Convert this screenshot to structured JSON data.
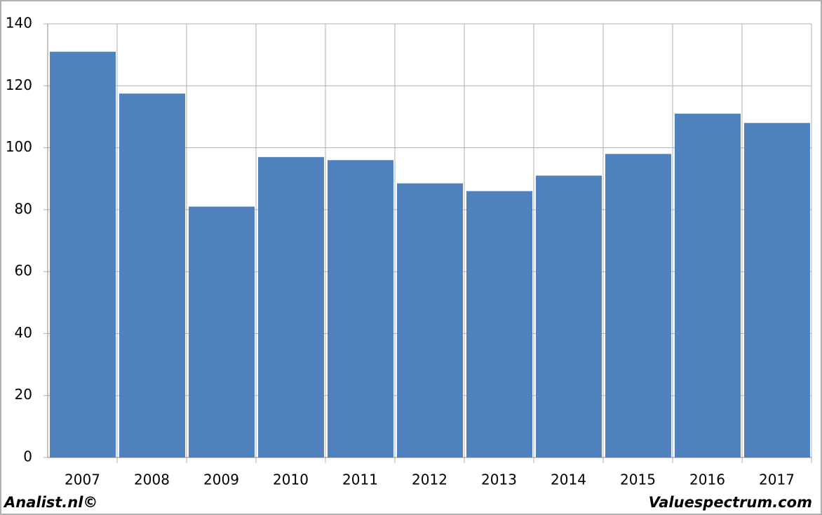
{
  "chart_data": {
    "type": "bar",
    "categories": [
      "2007",
      "2008",
      "2009",
      "2010",
      "2011",
      "2012",
      "2013",
      "2014",
      "2015",
      "2016",
      "2017"
    ],
    "values": [
      131,
      117.5,
      81,
      97,
      96,
      88.5,
      86,
      91,
      98,
      111,
      108
    ],
    "color": "#4f81bd",
    "ylim": [
      0,
      140
    ],
    "yticks": [
      0,
      20,
      40,
      60,
      80,
      100,
      120,
      140
    ],
    "grid": true
  },
  "footer": {
    "left": "Analist.nl©",
    "right": "Valuespectrum.com"
  }
}
